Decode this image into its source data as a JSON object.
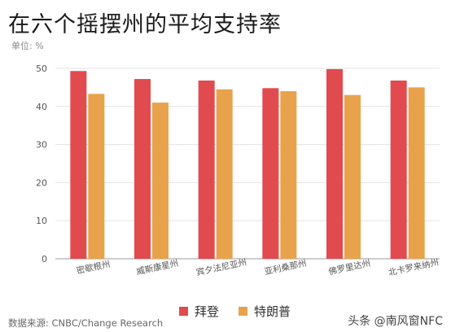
{
  "header": {
    "title": "在六个摇摆州的平均支持率",
    "unit": "单位: %"
  },
  "footer": {
    "source": "数据来源: CNBC/Change Research",
    "watermark": "头条 @南风窗NFC"
  },
  "chart_data": {
    "type": "bar",
    "title": "在六个摇摆州的平均支持率",
    "xlabel": "",
    "ylabel": "",
    "unit": "单位: %",
    "ylim": [
      0,
      50
    ],
    "yticks": [
      0,
      10,
      20,
      30,
      40,
      50
    ],
    "grid": true,
    "legend_position": "bottom",
    "categories": [
      "密歇根州",
      "威斯康星州",
      "宾夕法尼亚州",
      "亚利桑那州",
      "佛罗里达州",
      "北卡罗来纳州"
    ],
    "series": [
      {
        "name": "拜登",
        "color": "#e14a4f",
        "values": [
          49.3,
          47.2,
          46.8,
          44.8,
          49.8,
          46.8
        ]
      },
      {
        "name": "特朗普",
        "color": "#e9a24c",
        "values": [
          43.3,
          41.0,
          44.5,
          44.0,
          43.0,
          45.0
        ]
      }
    ]
  }
}
